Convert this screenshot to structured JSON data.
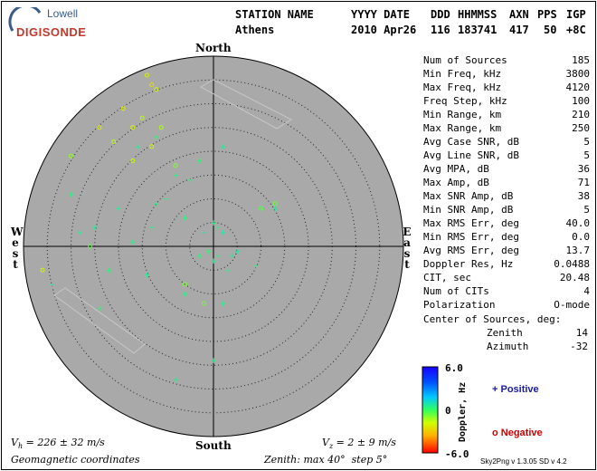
{
  "logo": {
    "top": "Lowell",
    "bottom": "DIGISONDE"
  },
  "header": {
    "row1": [
      "STATION NAME",
      "YYYY DATE",
      "DDD",
      "HHMMSS",
      "AXN",
      "PPS",
      "IGP"
    ],
    "row2": [
      "Athens",
      "2010 Apr26",
      "116",
      "183741",
      "417",
      "50",
      "+8C"
    ]
  },
  "directions": {
    "north": "North",
    "south": "South",
    "west": "West",
    "east": "East"
  },
  "stats": [
    {
      "label": "Num of Sources",
      "value": "185"
    },
    {
      "label": "Min Freq, kHz",
      "value": "3800"
    },
    {
      "label": "Max Freq, kHz",
      "value": "4120"
    },
    {
      "label": "Freq Step, kHz",
      "value": "100"
    },
    {
      "label": "Min Range, km",
      "value": "210"
    },
    {
      "label": "Max Range, km",
      "value": "250"
    },
    {
      "label": "Avg Case SNR, dB",
      "value": "5"
    },
    {
      "label": "Avg Line SNR, dB",
      "value": "5"
    },
    {
      "label": "Avg MPA, dB",
      "value": "36"
    },
    {
      "label": "Max Amp, dB",
      "value": "71"
    },
    {
      "label": "Max SNR Amp, dB",
      "value": "38"
    },
    {
      "label": "Min SNR Amp, dB",
      "value": "5"
    },
    {
      "label": "Max RMS Err, deg",
      "value": "40.0"
    },
    {
      "label": "Min RMS Err, deg",
      "value": "0.0"
    },
    {
      "label": "Avg RMS Err, deg",
      "value": "13.7"
    },
    {
      "label": "Doppler Res, Hz",
      "value": "0.0488"
    },
    {
      "label": "CIT, sec",
      "value": "20.48"
    },
    {
      "label": "Num of CITs",
      "value": "4"
    },
    {
      "label": "Polarization",
      "value": "O-mode"
    }
  ],
  "center_of_sources": {
    "title": "Center of Sources, deg:",
    "zenith_label": "Zenith",
    "zenith_value": "14",
    "azimuth_label": "Azimuth",
    "azimuth_value": "-32"
  },
  "colorbar": {
    "max_label": "6.0",
    "mid_label": "0",
    "min_label": "-6.0",
    "title": "Doppler, Hz",
    "positive": "+ Positive",
    "negative": "o Negative",
    "positive_color": "#1a1aa6",
    "negative_color": "#cc0000"
  },
  "bottom": {
    "vh": "V",
    "vh_sub": "h",
    "vh_rest": " = 226 ± 32 m/s",
    "vz": "V",
    "vz_sub": "z",
    "vz_rest": " = 2 ± 9 m/s",
    "geomag": "Geomagnetic coordinates",
    "zenith": "Zenith: max 40°  step 5°",
    "version": "Sky2Png v 1.3.05   SD v 4.2"
  },
  "chart_data": {
    "type": "scatter",
    "projection": "polar-skymap",
    "zenith_max_deg": 40,
    "zenith_step_deg": 5,
    "doppler_range_hz": [
      -6.0,
      6.0
    ],
    "series": [
      {
        "name": "Positive",
        "marker": "+",
        "points": [
          [
            -16,
            -21,
            0.5
          ],
          [
            -12,
            -23,
            0.3
          ],
          [
            -3,
            -18,
            0.2
          ],
          [
            2,
            -21,
            0.6
          ],
          [
            -8,
            -15,
            0.4
          ],
          [
            -5,
            -14,
            0.3
          ],
          [
            -10,
            -10,
            0.5
          ],
          [
            -6,
            -6,
            0.2
          ],
          [
            -2,
            -3,
            0.6
          ],
          [
            0,
            -5,
            0.3
          ],
          [
            1,
            -4,
            0.4
          ],
          [
            2,
            -3,
            0.7
          ],
          [
            -3,
            2,
            0.3
          ],
          [
            0,
            3,
            0.5
          ],
          [
            3,
            5,
            0.4
          ],
          [
            4,
            2,
            0.6
          ],
          [
            -1,
            1,
            0.2
          ],
          [
            1,
            2,
            0.3
          ],
          [
            5,
            1,
            0.8
          ],
          [
            -12,
            -9,
            0.4
          ],
          [
            -20,
            -8,
            0.5
          ],
          [
            -25,
            -4,
            0.6
          ],
          [
            -22,
            5,
            0.3
          ],
          [
            -14,
            6,
            0.5
          ],
          [
            -6,
            10,
            0.4
          ],
          [
            2,
            12,
            0.5
          ],
          [
            9,
            4,
            0.3
          ],
          [
            13,
            -8,
            0.7
          ],
          [
            -30,
            -11,
            0.4
          ],
          [
            -28,
            -3,
            0.5
          ],
          [
            -34,
            8,
            0.6
          ],
          [
            -24,
            13,
            0.3
          ],
          [
            -13,
            -4,
            0.5
          ],
          [
            -17,
            -1,
            0.4
          ],
          [
            0,
            24,
            0.4
          ],
          [
            -8,
            28,
            0.5
          ]
        ]
      },
      {
        "name": "Negative",
        "marker": "o",
        "points": [
          [
            -14,
            -36,
            -2.1
          ],
          [
            -13,
            -34,
            -2.5
          ],
          [
            -12,
            -33,
            -1.8
          ],
          [
            -19,
            -29,
            -2.2
          ],
          [
            -15,
            -27,
            -1.6
          ],
          [
            -17,
            -25,
            -2.0
          ],
          [
            -11,
            -25,
            -1.4
          ],
          [
            -13,
            -21,
            -1.9
          ],
          [
            -24,
            -25,
            -2.3
          ],
          [
            -17,
            -18,
            -1.7
          ],
          [
            -36,
            5,
            -2.0
          ],
          [
            -30,
            -19,
            -1.1
          ],
          [
            -8,
            -17,
            -0.9
          ],
          [
            13,
            -9,
            -0.6
          ],
          [
            10,
            -8,
            -0.4
          ],
          [
            -6,
            8,
            -0.8
          ],
          [
            -2,
            12,
            -0.7
          ],
          [
            -26,
            0,
            -0.5
          ],
          [
            -21,
            -22,
            -1.5
          ]
        ]
      }
    ]
  }
}
